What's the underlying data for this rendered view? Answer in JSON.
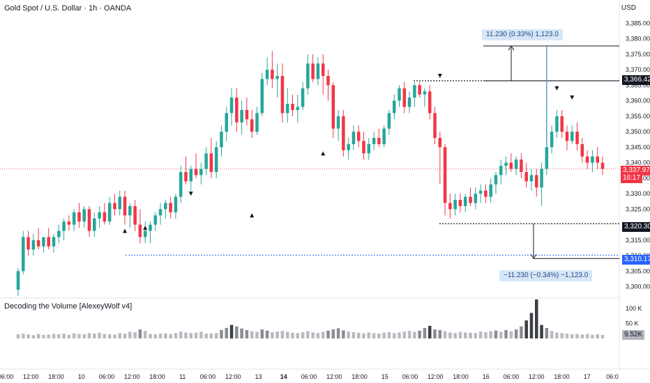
{
  "header": {
    "title": "Gold Spot / U.S. Dollar · 1h · OANDA",
    "currency": "USD"
  },
  "indicator": {
    "title": "Decoding the Volume [AlexeyWolf v4]"
  },
  "price_axis": {
    "ticks": [
      "3,385.000",
      "3,380.000",
      "3,375.000",
      "3,370.000",
      "3,365.000",
      "3,360.000",
      "3,355.000",
      "3,350.000",
      "3,345.000",
      "3,340.000",
      "3,335.000",
      "3,330.000",
      "3,325.000",
      "3,320.000",
      "3,315.000",
      "3,310.000",
      "3,305.000",
      "3,300.000"
    ]
  },
  "volume_axis": {
    "ticks": [
      "100 K",
      "50 K"
    ]
  },
  "time_axis": {
    "ticks": [
      "06:00",
      "12:00",
      "18:00",
      "10",
      "06:00",
      "12:00",
      "18:00",
      "11",
      "06:00",
      "12:00",
      "13",
      "14",
      "06:00",
      "12:00",
      "18:00",
      "15",
      "06:00",
      "12:00",
      "18:00",
      "16",
      "06:00",
      "12:00",
      "18:00",
      "17",
      "06:0"
    ]
  },
  "badges": {
    "level_high": "3,366.425",
    "current_price": "3,337.975",
    "countdown": "16:17",
    "level_low": "3,320.305",
    "level_low2": "3,310.175",
    "volume_value": "9.52K"
  },
  "annotations": {
    "up_measure": "11.230 (0.33%) 1,123.0",
    "down_measure": "−11.230 (−0.34%) −1,123.0"
  },
  "colors": {
    "up": "#26a69a",
    "down": "#f23645",
    "level": "#131722",
    "level2": "#2962ff",
    "measure": "#5b9bd5"
  },
  "chart_data": {
    "type": "candlestick",
    "symbol": "Gold Spot / U.S. Dollar",
    "timeframe": "1h",
    "y_range": [
      3297,
      3388
    ],
    "ohlc": [
      [
        3299,
        3306,
        3297,
        3305
      ],
      [
        3305,
        3318,
        3304,
        3316
      ],
      [
        3316,
        3318,
        3310,
        3312
      ],
      [
        3312,
        3317,
        3310,
        3315
      ],
      [
        3315,
        3319,
        3312,
        3313
      ],
      [
        3313,
        3316,
        3311,
        3316
      ],
      [
        3316,
        3319,
        3312,
        3313
      ],
      [
        3313,
        3317,
        3311,
        3316
      ],
      [
        3316,
        3320,
        3314,
        3318
      ],
      [
        3318,
        3322,
        3315,
        3321
      ],
      [
        3321,
        3323,
        3318,
        3320
      ],
      [
        3320,
        3325,
        3318,
        3324
      ],
      [
        3324,
        3327,
        3319,
        3321
      ],
      [
        3321,
        3326,
        3319,
        3325
      ],
      [
        3325,
        3326,
        3316,
        3318
      ],
      [
        3318,
        3324,
        3316,
        3322
      ],
      [
        3322,
        3326,
        3319,
        3324
      ],
      [
        3324,
        3327,
        3320,
        3321
      ],
      [
        3321,
        3329,
        3320,
        3327
      ],
      [
        3327,
        3330,
        3323,
        3325
      ],
      [
        3325,
        3331,
        3323,
        3329
      ],
      [
        3329,
        3331,
        3320,
        3323
      ],
      [
        3323,
        3327,
        3319,
        3326
      ],
      [
        3326,
        3328,
        3318,
        3320
      ],
      [
        3320,
        3325,
        3314,
        3316
      ],
      [
        3316,
        3321,
        3314,
        3318
      ],
      [
        3318,
        3321,
        3314,
        3320
      ],
      [
        3320,
        3324,
        3318,
        3323
      ],
      [
        3323,
        3327,
        3320,
        3325
      ],
      [
        3325,
        3328,
        3322,
        3327
      ],
      [
        3327,
        3329,
        3322,
        3324
      ],
      [
        3324,
        3330,
        3322,
        3329
      ],
      [
        3329,
        3339,
        3327,
        3337
      ],
      [
        3337,
        3342,
        3333,
        3334
      ],
      [
        3334,
        3339,
        3331,
        3338
      ],
      [
        3338,
        3343,
        3335,
        3336
      ],
      [
        3336,
        3340,
        3333,
        3338
      ],
      [
        3338,
        3345,
        3336,
        3343
      ],
      [
        3343,
        3348,
        3335,
        3337
      ],
      [
        3337,
        3347,
        3335,
        3345
      ],
      [
        3345,
        3352,
        3342,
        3350
      ],
      [
        3350,
        3358,
        3347,
        3356
      ],
      [
        3356,
        3364,
        3352,
        3361
      ],
      [
        3361,
        3364,
        3350,
        3353
      ],
      [
        3353,
        3360,
        3349,
        3357
      ],
      [
        3357,
        3361,
        3352,
        3354
      ],
      [
        3354,
        3357,
        3348,
        3350
      ],
      [
        3350,
        3358,
        3349,
        3356
      ],
      [
        3356,
        3369,
        3355,
        3367
      ],
      [
        3367,
        3374,
        3365,
        3370
      ],
      [
        3370,
        3376,
        3364,
        3367
      ],
      [
        3367,
        3372,
        3361,
        3368
      ],
      [
        3368,
        3372,
        3353,
        3356
      ],
      [
        3356,
        3364,
        3353,
        3359
      ],
      [
        3359,
        3362,
        3355,
        3357
      ],
      [
        3357,
        3362,
        3353,
        3358
      ],
      [
        3358,
        3366,
        3357,
        3364
      ],
      [
        3364,
        3375,
        3362,
        3372
      ],
      [
        3372,
        3375,
        3366,
        3367
      ],
      [
        3367,
        3374,
        3365,
        3372
      ],
      [
        3372,
        3375,
        3362,
        3368
      ],
      [
        3368,
        3370,
        3360,
        3365
      ],
      [
        3365,
        3366,
        3348,
        3351
      ],
      [
        3351,
        3357,
        3347,
        3355
      ],
      [
        3355,
        3357,
        3342,
        3344
      ],
      [
        3344,
        3348,
        3341,
        3346
      ],
      [
        3346,
        3352,
        3344,
        3350
      ],
      [
        3350,
        3352,
        3345,
        3347
      ],
      [
        3347,
        3350,
        3341,
        3343
      ],
      [
        3343,
        3348,
        3341,
        3346
      ],
      [
        3346,
        3350,
        3344,
        3348
      ],
      [
        3348,
        3351,
        3345,
        3346
      ],
      [
        3346,
        3352,
        3345,
        3351
      ],
      [
        3351,
        3357,
        3349,
        3356
      ],
      [
        3356,
        3362,
        3354,
        3360
      ],
      [
        3360,
        3365,
        3358,
        3364
      ],
      [
        3364,
        3366,
        3356,
        3358
      ],
      [
        3358,
        3363,
        3356,
        3361
      ],
      [
        3361,
        3366,
        3358,
        3365
      ],
      [
        3365,
        3366,
        3361,
        3362
      ],
      [
        3362,
        3364,
        3358,
        3363
      ],
      [
        3363,
        3365,
        3354,
        3356
      ],
      [
        3356,
        3358,
        3346,
        3348
      ],
      [
        3348,
        3350,
        3333,
        3345
      ],
      [
        3345,
        3346,
        3323,
        3327
      ],
      [
        3327,
        3330,
        3322,
        3325
      ],
      [
        3325,
        3330,
        3323,
        3328
      ],
      [
        3328,
        3330,
        3324,
        3326
      ],
      [
        3326,
        3330,
        3324,
        3329
      ],
      [
        3329,
        3332,
        3326,
        3327
      ],
      [
        3327,
        3332,
        3325,
        3330
      ],
      [
        3330,
        3333,
        3327,
        3331
      ],
      [
        3331,
        3333,
        3327,
        3329
      ],
      [
        3329,
        3335,
        3327,
        3333
      ],
      [
        3333,
        3337,
        3330,
        3336
      ],
      [
        3336,
        3341,
        3333,
        3339
      ],
      [
        3339,
        3342,
        3336,
        3340
      ],
      [
        3340,
        3343,
        3337,
        3338
      ],
      [
        3338,
        3342,
        3336,
        3341
      ],
      [
        3341,
        3343,
        3335,
        3337
      ],
      [
        3337,
        3340,
        3332,
        3334
      ],
      [
        3334,
        3338,
        3331,
        3336
      ],
      [
        3336,
        3338,
        3329,
        3332
      ],
      [
        3332,
        3340,
        3326,
        3338
      ],
      [
        3338,
        3378,
        3336,
        3345
      ],
      [
        3345,
        3352,
        3343,
        3350
      ],
      [
        3350,
        3357,
        3348,
        3355
      ],
      [
        3355,
        3357,
        3348,
        3350
      ],
      [
        3350,
        3352,
        3344,
        3347
      ],
      [
        3347,
        3352,
        3346,
        3350
      ],
      [
        3350,
        3353,
        3344,
        3346
      ],
      [
        3346,
        3348,
        3340,
        3342
      ],
      [
        3342,
        3344,
        3338,
        3340
      ],
      [
        3340,
        3344,
        3337,
        3342
      ],
      [
        3342,
        3345,
        3338,
        3340
      ],
      [
        3340,
        3342,
        3336,
        3338
      ]
    ],
    "volume": [
      14,
      16,
      13,
      11,
      15,
      12,
      13,
      15,
      14,
      16,
      12,
      17,
      15,
      14,
      18,
      16,
      19,
      15,
      14,
      13,
      18,
      16,
      22,
      20,
      30,
      25,
      15,
      14,
      16,
      17,
      15,
      18,
      23,
      20,
      18,
      19,
      22,
      16,
      17,
      18,
      28,
      35,
      45,
      40,
      33,
      28,
      24,
      22,
      30,
      26,
      21,
      23,
      25,
      22,
      19,
      18,
      21,
      24,
      20,
      18,
      22,
      26,
      30,
      34,
      27,
      23,
      21,
      19,
      17,
      20,
      18,
      16,
      19,
      21,
      18,
      20,
      23,
      25,
      22,
      26,
      35,
      42,
      30,
      28,
      24,
      20,
      18,
      22,
      20,
      19,
      18,
      23,
      21,
      24,
      26,
      22,
      28,
      24,
      30,
      40,
      60,
      85,
      130,
      45,
      35,
      25,
      20,
      18,
      16,
      14,
      15,
      13,
      15,
      12,
      14,
      12
    ],
    "levels": [
      3366.425,
      3320.305,
      3310.175
    ],
    "last_price": 3337.975
  }
}
